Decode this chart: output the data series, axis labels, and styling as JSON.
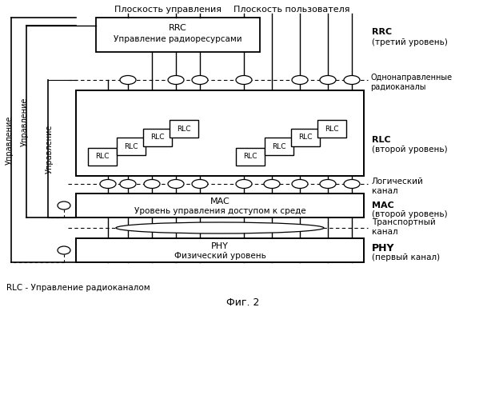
{
  "title": "Фиг. 2",
  "caption": "RLC - Управление радиоканалом",
  "bg_color": "#ffffff",
  "labels": {
    "plane_control": "Плоскость управления",
    "plane_user": "Плоскость пользователя",
    "rrc_right1": "RRC",
    "rrc_right2": "(третий уровень)",
    "unidirectional": "Однонаправленные\nрадиоканалы",
    "rlc_right1": "RLC",
    "rlc_right2": "(второй уровень)",
    "logical_channel": "Логический\nканал",
    "mac_right1": "MAC",
    "mac_right2": "(второй уровень)",
    "transport_channel": "Транспортный\nканал",
    "phy_right": "PHY\n(первый канал)",
    "upravlenie": "Управление"
  }
}
